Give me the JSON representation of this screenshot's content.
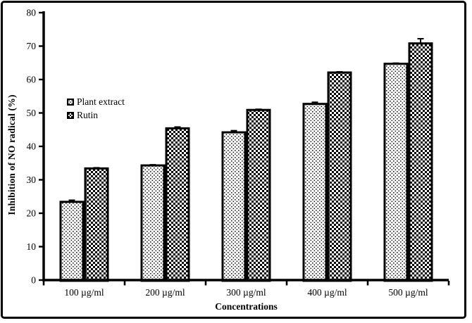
{
  "figure": {
    "kind": "scientific bar chart figure",
    "background_color": "#ffffff",
    "frame_border_color": "#000000"
  },
  "colors": {
    "bar_outline": "#000000",
    "bar_fill_background": "#ffffff",
    "pattern_ink": "#000000",
    "axis": "#000000",
    "text": "#000000"
  },
  "chart_data": {
    "type": "bar",
    "title": "",
    "xlabel": "Concentrations",
    "ylabel": "Inhibition of NO radical (%)",
    "categories": [
      "100 µg/ml",
      "200 µg/ml",
      "300 µg/ml",
      "400 µg/ml",
      "500 µg/ml"
    ],
    "series": [
      {
        "name": "Plant extract",
        "pattern": "dots",
        "values": [
          23.4,
          34.3,
          44.2,
          52.7,
          64.7
        ],
        "errors": [
          0.5,
          0.2,
          0.5,
          0.5,
          0.2
        ]
      },
      {
        "name": "Rutin",
        "pattern": "checker",
        "values": [
          33.4,
          45.4,
          50.9,
          62.1,
          70.8
        ],
        "errors": [
          0.2,
          0.4,
          0.2,
          0.2,
          1.4
        ]
      }
    ],
    "ylim": [
      0,
      80
    ],
    "y_tick_step": 10,
    "y_tick_labels": [
      "0",
      "10",
      "20",
      "30",
      "40",
      "50",
      "60",
      "70",
      "80"
    ],
    "grid": false,
    "legend_position": "inside-upper-left",
    "error_bars": true
  }
}
